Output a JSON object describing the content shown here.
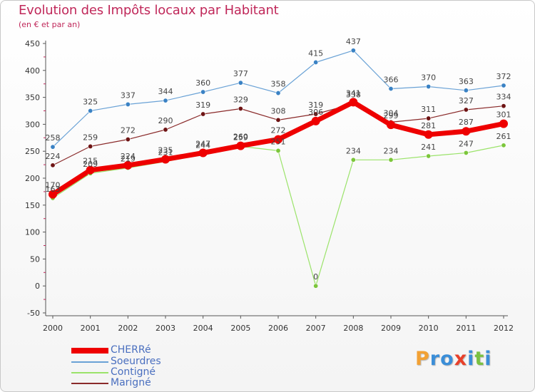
{
  "title": "Evolution des Impôts locaux par Habitant",
  "subtitle": "(en € et par an)",
  "logo": {
    "text": "Proxiti",
    "letters": [
      {
        "ch": "P",
        "color": "#f2a134"
      },
      {
        "ch": "r",
        "color": "#3b8ed8"
      },
      {
        "ch": "o",
        "color": "#3b8ed8"
      },
      {
        "ch": "x",
        "color": "#e8402a"
      },
      {
        "ch": "i",
        "color": "#3b8ed8"
      },
      {
        "ch": "t",
        "color": "#7ac142"
      },
      {
        "ch": "i",
        "color": "#3b8ed8"
      }
    ]
  },
  "chart_data": {
    "type": "line",
    "title": "Evolution des Impôts locaux par Habitant",
    "subtitle": "(en € et par an)",
    "xlabel": "",
    "ylabel": "",
    "ylim": [
      -50,
      450
    ],
    "yticks": [
      -50,
      0,
      50,
      100,
      150,
      200,
      250,
      300,
      350,
      400,
      450
    ],
    "grid": false,
    "legend_position": "bottom-left",
    "x": [
      "2000",
      "2001",
      "2002",
      "2003",
      "2004",
      "2005",
      "2006",
      "2007",
      "2008",
      "2009",
      "2010",
      "2011",
      "2012"
    ],
    "series": [
      {
        "name": "CHERRé",
        "color": "#ee0000",
        "marker": "#ee0000",
        "width": 7,
        "values": [
          170,
          215,
          224,
          235,
          247,
          260,
          272,
          306,
          341,
          299,
          281,
          287,
          301
        ]
      },
      {
        "name": "Soeurdres",
        "color": "#6aa2d6",
        "marker": "#3a82c4",
        "width": 1.2,
        "values": [
          258,
          325,
          337,
          344,
          360,
          377,
          358,
          415,
          437,
          366,
          370,
          363,
          372
        ]
      },
      {
        "name": "Contigné",
        "color": "#9be36a",
        "marker": "#7cc63b",
        "width": 1.2,
        "values": [
          163,
          209,
          219,
          231,
          244,
          259,
          251,
          0,
          234,
          234,
          241,
          247,
          261
        ]
      },
      {
        "name": "Marigné",
        "color": "#8a2a2a",
        "marker": "#6e1414",
        "width": 1.2,
        "values": [
          224,
          259,
          272,
          290,
          319,
          329,
          308,
          319,
          338,
          304,
          311,
          327,
          334
        ]
      }
    ]
  }
}
